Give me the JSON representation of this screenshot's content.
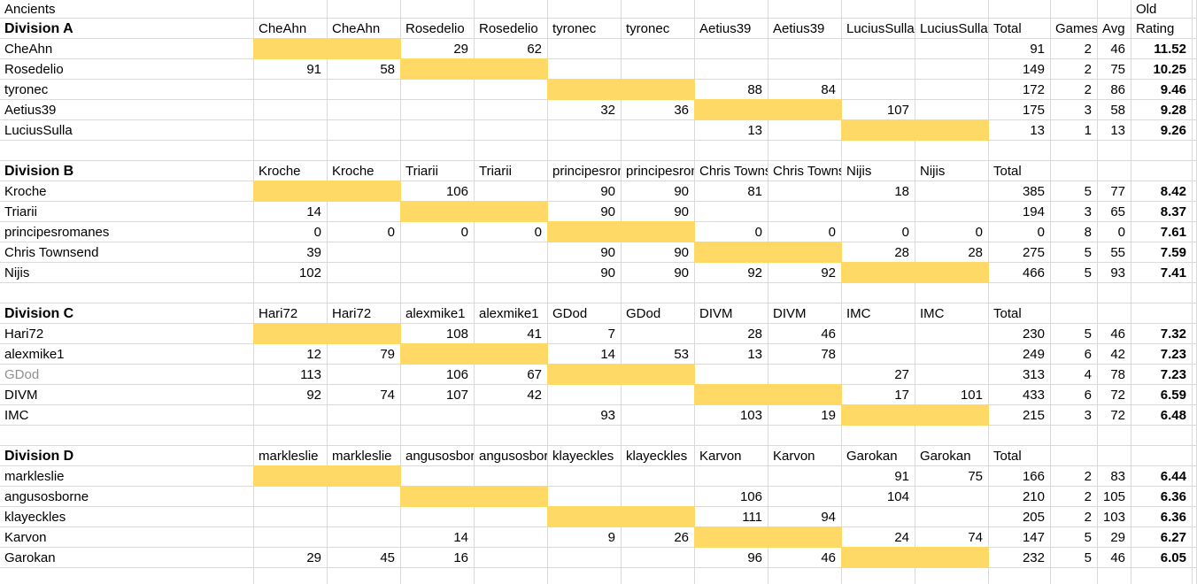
{
  "sheet": {
    "title": "Ancients",
    "corner_header_top": "Old",
    "stat_headers": {
      "total": "Total",
      "games": "Games",
      "avg": "Avg",
      "rating": "Rating"
    },
    "colors": {
      "highlight": "#FFD966",
      "gridline": "#D9D9D9",
      "muted_text": "#909090",
      "text": "#000000",
      "background": "#FFFFFF"
    }
  },
  "divisions": [
    {
      "name": "Division A",
      "show_stat_headers": true,
      "opponents": [
        "CheAhn",
        "CheAhn",
        "Rosedelio",
        "Rosedelio",
        "tyronec",
        "tyronec",
        "Aetius39",
        "Aetius39",
        "LuciusSulla",
        "LuciusSulla"
      ],
      "players": [
        {
          "name": "CheAhn",
          "scores": [
            "",
            "",
            "29",
            "62",
            "",
            "",
            "",
            "",
            "",
            ""
          ],
          "total": "91",
          "games": "2",
          "avg": "46",
          "rating": "11.52"
        },
        {
          "name": "Rosedelio",
          "scores": [
            "91",
            "58",
            "",
            "",
            "",
            "",
            "",
            "",
            "",
            ""
          ],
          "total": "149",
          "games": "2",
          "avg": "75",
          "rating": "10.25"
        },
        {
          "name": "tyronec",
          "scores": [
            "",
            "",
            "",
            "",
            "",
            "",
            "88",
            "84",
            "",
            ""
          ],
          "total": "172",
          "games": "2",
          "avg": "86",
          "rating": "9.46"
        },
        {
          "name": "Aetius39",
          "scores": [
            "",
            "",
            "",
            "",
            "32",
            "36",
            "",
            "",
            "107",
            ""
          ],
          "total": "175",
          "games": "3",
          "avg": "58",
          "rating": "9.28"
        },
        {
          "name": "LuciusSulla",
          "scores": [
            "",
            "",
            "",
            "",
            "",
            "",
            "13",
            "",
            "",
            ""
          ],
          "total": "13",
          "games": "1",
          "avg": "13",
          "rating": "9.26"
        }
      ]
    },
    {
      "name": "Division B",
      "show_stat_headers": false,
      "opponents": [
        "Kroche",
        "Kroche",
        "Triarii",
        "Triarii",
        "principesromanes",
        "principesromanes",
        "Chris Townsend",
        "Chris Townsend",
        "Nijis",
        "Nijis"
      ],
      "players": [
        {
          "name": "Kroche",
          "scores": [
            "",
            "",
            "106",
            "",
            "90",
            "90",
            "81",
            "",
            "18",
            ""
          ],
          "total": "385",
          "games": "5",
          "avg": "77",
          "rating": "8.42"
        },
        {
          "name": "Triarii",
          "scores": [
            "14",
            "",
            "",
            "",
            "90",
            "90",
            "",
            "",
            "",
            ""
          ],
          "total": "194",
          "games": "3",
          "avg": "65",
          "rating": "8.37"
        },
        {
          "name": "principesromanes",
          "scores": [
            "0",
            "0",
            "0",
            "0",
            "",
            "",
            "0",
            "0",
            "0",
            "0"
          ],
          "total": "0",
          "games": "8",
          "avg": "0",
          "rating": "7.61"
        },
        {
          "name": "Chris Townsend",
          "scores": [
            "39",
            "",
            "",
            "",
            "90",
            "90",
            "",
            "",
            "28",
            "28"
          ],
          "total": "275",
          "games": "5",
          "avg": "55",
          "rating": "7.59"
        },
        {
          "name": "Nijis",
          "scores": [
            "102",
            "",
            "",
            "",
            "90",
            "90",
            "92",
            "92",
            "",
            ""
          ],
          "total": "466",
          "games": "5",
          "avg": "93",
          "rating": "7.41"
        }
      ]
    },
    {
      "name": "Division C",
      "show_stat_headers": false,
      "opponents": [
        "Hari72",
        "Hari72",
        "alexmike1",
        "alexmike1",
        "GDod",
        "GDod",
        "DIVM",
        "DIVM",
        "IMC",
        "IMC"
      ],
      "players": [
        {
          "name": "Hari72",
          "scores": [
            "",
            "",
            "108",
            "41",
            "7",
            "",
            "28",
            "46",
            "",
            ""
          ],
          "total": "230",
          "games": "5",
          "avg": "46",
          "rating": "7.32"
        },
        {
          "name": "alexmike1",
          "scores": [
            "12",
            "79",
            "",
            "",
            "14",
            "53",
            "13",
            "78",
            "",
            ""
          ],
          "total": "249",
          "games": "6",
          "avg": "42",
          "rating": "7.23"
        },
        {
          "name": "GDod",
          "muted": true,
          "scores": [
            "113",
            "",
            "106",
            "67",
            "",
            "",
            "",
            "",
            "27",
            ""
          ],
          "total": "313",
          "games": "4",
          "avg": "78",
          "rating": "7.23"
        },
        {
          "name": "DIVM",
          "scores": [
            "92",
            "74",
            "107",
            "42",
            "",
            "",
            "",
            "",
            "17",
            "101"
          ],
          "total": "433",
          "games": "6",
          "avg": "72",
          "rating": "6.59"
        },
        {
          "name": "IMC",
          "scores": [
            "",
            "",
            "",
            "",
            "93",
            "",
            "103",
            "19",
            "",
            ""
          ],
          "total": "215",
          "games": "3",
          "avg": "72",
          "rating": "6.48"
        }
      ]
    },
    {
      "name": "Division D",
      "show_stat_headers": false,
      "opponents": [
        "markleslie",
        "markleslie",
        "angusosborne",
        "angusosborne",
        "klayeckles",
        "klayeckles",
        "Karvon",
        "Karvon",
        "Garokan",
        "Garokan"
      ],
      "players": [
        {
          "name": "markleslie",
          "scores": [
            "",
            "",
            "",
            "",
            "",
            "",
            "",
            "",
            "91",
            "75"
          ],
          "total": "166",
          "games": "2",
          "avg": "83",
          "rating": "6.44"
        },
        {
          "name": "angusosborne",
          "scores": [
            "",
            "",
            "",
            "",
            "",
            "",
            "106",
            "",
            "104",
            ""
          ],
          "total": "210",
          "games": "2",
          "avg": "105",
          "rating": "6.36"
        },
        {
          "name": "klayeckles",
          "scores": [
            "",
            "",
            "",
            "",
            "",
            "",
            "111",
            "94",
            "",
            ""
          ],
          "total": "205",
          "games": "2",
          "avg": "103",
          "rating": "6.36"
        },
        {
          "name": "Karvon",
          "scores": [
            "",
            "",
            "14",
            "",
            "9",
            "26",
            "",
            "",
            "24",
            "74"
          ],
          "total": "147",
          "games": "5",
          "avg": "29",
          "rating": "6.27"
        },
        {
          "name": "Garokan",
          "scores": [
            "29",
            "45",
            "16",
            "",
            "",
            "",
            "96",
            "46",
            "",
            ""
          ],
          "total": "232",
          "games": "5",
          "avg": "46",
          "rating": "6.05"
        }
      ]
    }
  ]
}
